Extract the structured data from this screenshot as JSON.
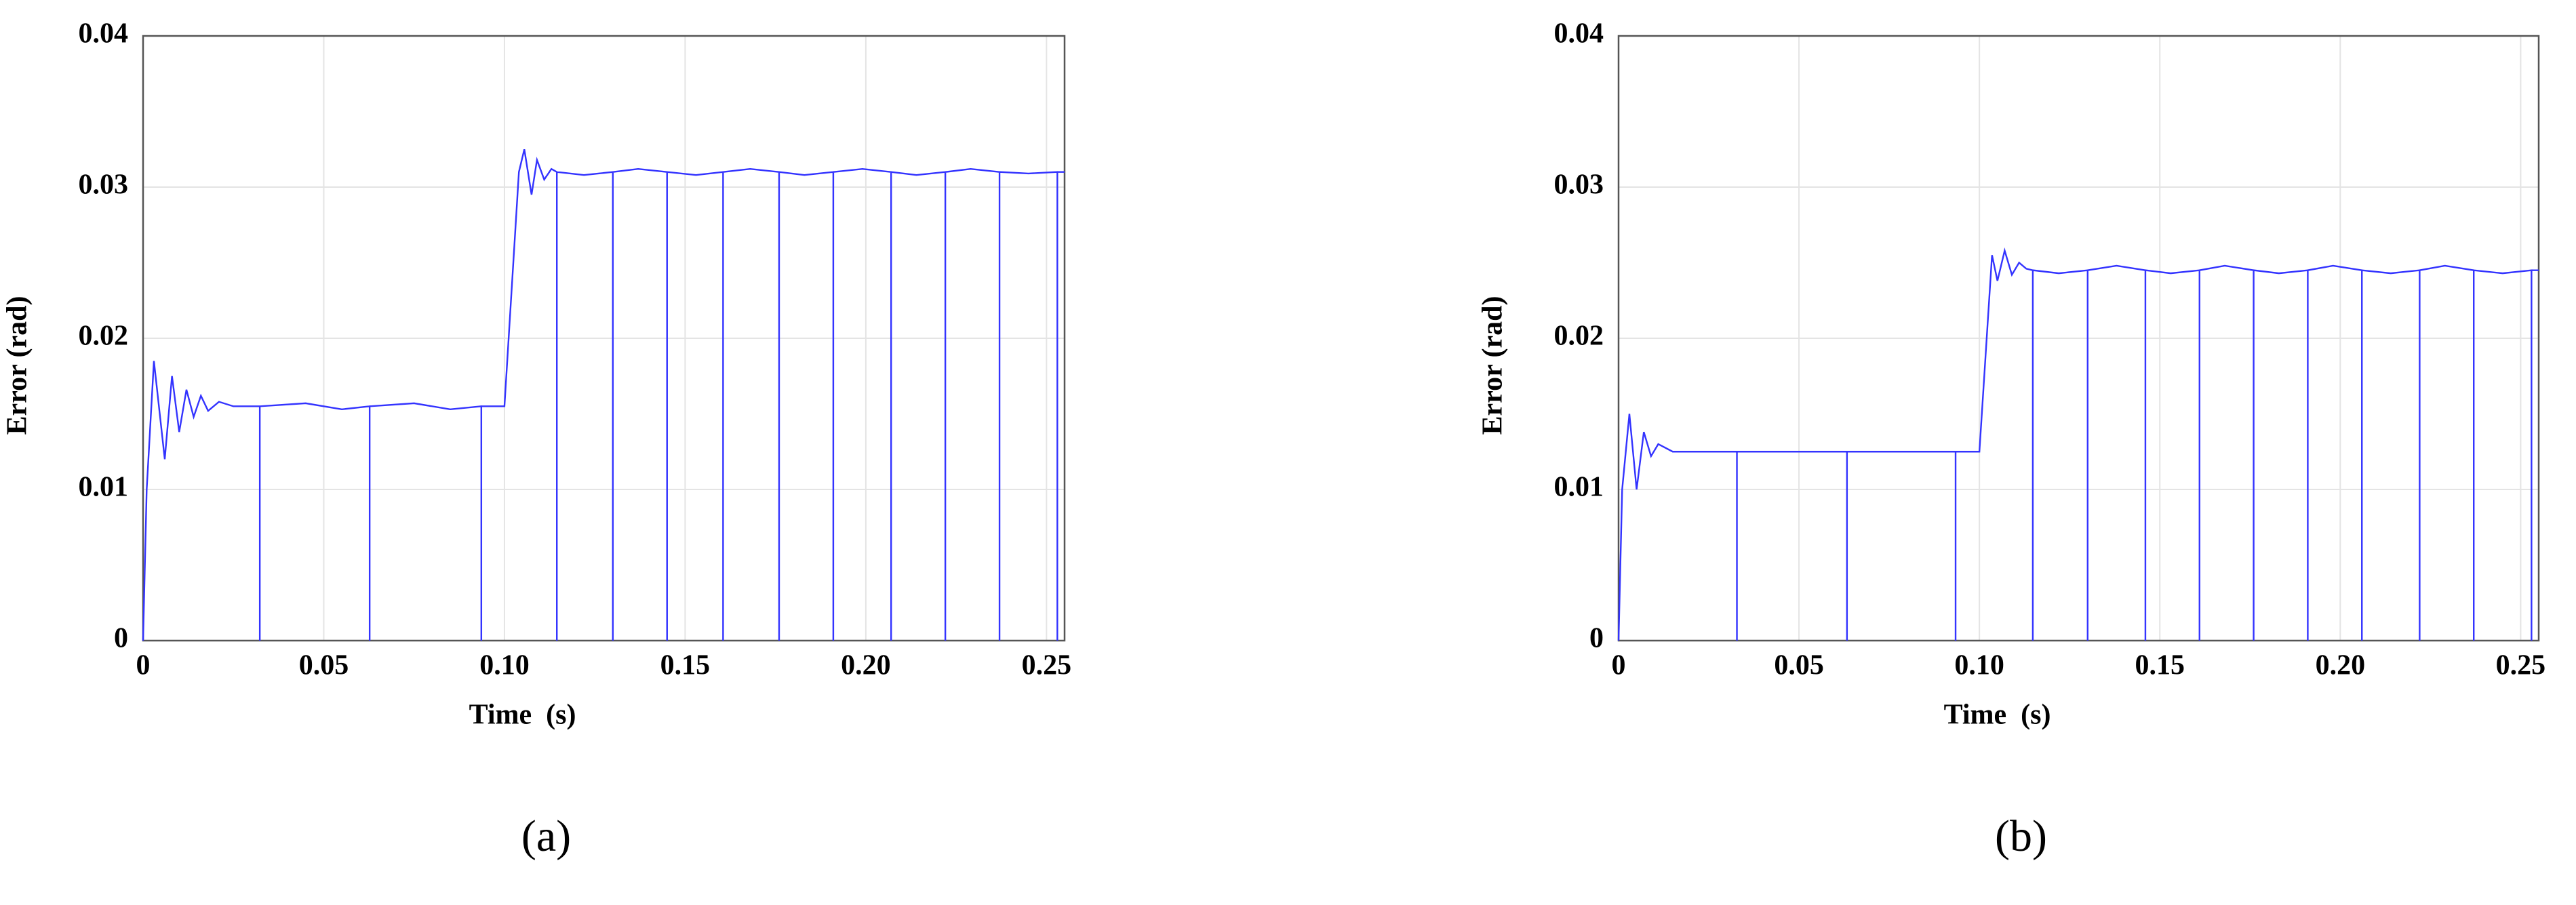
{
  "chart_data": [
    {
      "type": "line",
      "xlabel": "Time  (s)",
      "ylabel": "Error (rad)",
      "caption": "(a)",
      "color": "#3333ff",
      "grid": true,
      "xlim": [
        0,
        0.255
      ],
      "ylim": [
        0,
        0.04
      ],
      "xticks": [
        0,
        0.05,
        {
          "value": 0.1,
          "label": "0.10"
        },
        0.15,
        {
          "value": 0.2,
          "label": "0.20"
        },
        0.25
      ],
      "yticks": [
        0,
        0.01,
        0.02,
        0.03,
        0.04
      ],
      "x": [
        0,
        0.001,
        0.003,
        0.006,
        0.008,
        0.01,
        0.012,
        0.014,
        0.016,
        0.018,
        0.021,
        0.025,
        0.0323,
        0.0323,
        0.0323,
        0.045,
        0.055,
        0.0627,
        0.0627,
        0.0627,
        0.075,
        0.085,
        0.0936,
        0.0936,
        0.0936,
        0.1,
        0.104,
        0.1055,
        0.1075,
        0.109,
        0.111,
        0.113,
        0.1145,
        0.1145,
        0.1145,
        0.122,
        0.13,
        0.13,
        0.13,
        0.137,
        0.145,
        0.145,
        0.145,
        0.153,
        0.1605,
        0.1605,
        0.1605,
        0.168,
        0.176,
        0.176,
        0.176,
        0.183,
        0.191,
        0.191,
        0.191,
        0.199,
        0.207,
        0.207,
        0.207,
        0.214,
        0.222,
        0.222,
        0.222,
        0.229,
        0.237,
        0.237,
        0.237,
        0.245,
        0.253,
        0.253,
        0.253,
        0.255
      ],
      "values": [
        0,
        0.01,
        0.0185,
        0.012,
        0.0175,
        0.0138,
        0.0166,
        0.0148,
        0.0162,
        0.0152,
        0.0158,
        0.0155,
        0.0155,
        0,
        0.0155,
        0.0157,
        0.0153,
        0.0155,
        0,
        0.0155,
        0.0157,
        0.0153,
        0.0155,
        0,
        0.0155,
        0.0155,
        0.031,
        0.0325,
        0.0295,
        0.0318,
        0.0305,
        0.0312,
        0.031,
        0,
        0.031,
        0.0308,
        0.031,
        0,
        0.031,
        0.0312,
        0.031,
        0,
        0.031,
        0.0308,
        0.031,
        0,
        0.031,
        0.0312,
        0.031,
        0,
        0.031,
        0.0308,
        0.031,
        0,
        0.031,
        0.0312,
        0.031,
        0,
        0.031,
        0.0308,
        0.031,
        0,
        0.031,
        0.0312,
        0.031,
        0,
        0.031,
        0.0309,
        0.031,
        0,
        0.031,
        0.031
      ]
    },
    {
      "type": "line",
      "xlabel": "Time  (s)",
      "ylabel": "Error (rad)",
      "caption": "(b)",
      "color": "#3333ff",
      "grid": true,
      "xlim": [
        0,
        0.255
      ],
      "ylim": [
        0,
        0.04
      ],
      "xticks": [
        0,
        0.05,
        {
          "value": 0.1,
          "label": "0.10"
        },
        0.15,
        {
          "value": 0.2,
          "label": "0.20"
        },
        0.25
      ],
      "yticks": [
        0,
        0.01,
        0.02,
        0.03,
        0.04
      ],
      "x": [
        0,
        0.001,
        0.003,
        0.005,
        0.007,
        0.009,
        0.011,
        0.015,
        0.0328,
        0.0328,
        0.0328,
        0.0633,
        0.0633,
        0.0633,
        0.0934,
        0.0934,
        0.0934,
        0.1,
        0.1035,
        0.105,
        0.107,
        0.109,
        0.111,
        0.113,
        0.1148,
        0.1148,
        0.1148,
        0.122,
        0.13,
        0.13,
        0.13,
        0.138,
        0.146,
        0.146,
        0.146,
        0.153,
        0.161,
        0.161,
        0.161,
        0.168,
        0.176,
        0.176,
        0.176,
        0.183,
        0.191,
        0.191,
        0.191,
        0.198,
        0.206,
        0.206,
        0.206,
        0.214,
        0.222,
        0.222,
        0.222,
        0.229,
        0.237,
        0.237,
        0.237,
        0.245,
        0.253,
        0.253,
        0.253,
        0.255
      ],
      "values": [
        0,
        0.01,
        0.015,
        0.01,
        0.0138,
        0.0122,
        0.013,
        0.0125,
        0.0125,
        0,
        0.0125,
        0.0125,
        0,
        0.0125,
        0.0125,
        0,
        0.0125,
        0.0125,
        0.0255,
        0.0238,
        0.0258,
        0.0242,
        0.025,
        0.0246,
        0.0245,
        0,
        0.0245,
        0.0243,
        0.0245,
        0,
        0.0245,
        0.0248,
        0.0245,
        0,
        0.0245,
        0.0243,
        0.0245,
        0,
        0.0245,
        0.0248,
        0.0245,
        0,
        0.0245,
        0.0243,
        0.0245,
        0,
        0.0245,
        0.0248,
        0.0245,
        0,
        0.0245,
        0.0243,
        0.0245,
        0,
        0.0245,
        0.0248,
        0.0245,
        0,
        0.0245,
        0.0243,
        0.0245,
        0,
        0.0245,
        0.0245
      ]
    }
  ]
}
